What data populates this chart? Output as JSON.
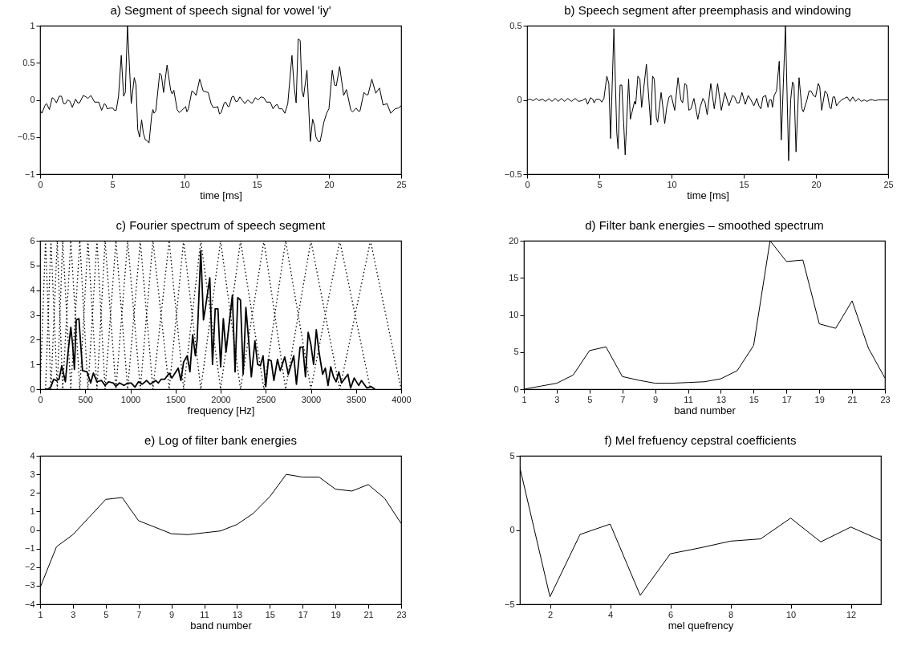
{
  "chart_data": [
    {
      "type": "line",
      "title": "a) Segment of speech signal for vowel 'iy'",
      "xlabel": "time [ms]",
      "xlim": [
        0,
        25
      ],
      "ylim": [
        -1,
        1
      ],
      "xticks": [
        0,
        5,
        10,
        15,
        20,
        25
      ],
      "yticks": [
        -1,
        -0.5,
        0,
        0.5,
        1
      ],
      "x": [
        0,
        0.12,
        0.35,
        0.45,
        0.64,
        0.84,
        0.98,
        1.13,
        1.33,
        1.48,
        1.62,
        1.76,
        1.91,
        2.07,
        2.23,
        2.46,
        2.6,
        2.73,
        2.99,
        3.18,
        3.32,
        3.52,
        3.77,
        3.96,
        4.06,
        4.26,
        4.45,
        4.55,
        4.65,
        4.84,
        5.04,
        5.14,
        5.27,
        5.43,
        5.62,
        5.78,
        5.9,
        6.05,
        6.31,
        6.52,
        6.64,
        6.76,
        6.89,
        7.03,
        7.15,
        7.29,
        7.42,
        7.54,
        7.73,
        7.81,
        7.89,
        8.01,
        8.28,
        8.4,
        8.55,
        8.79,
        9.04,
        9.14,
        9.26,
        9.49,
        9.63,
        9.82,
        10.08,
        10.16,
        10.27,
        10.51,
        10.66,
        10.8,
        11.05,
        11.29,
        11.45,
        11.64,
        11.84,
        11.97,
        12.17,
        12.3,
        12.42,
        12.54,
        12.75,
        12.85,
        13.01,
        13.09,
        13.28,
        13.4,
        13.54,
        13.67,
        13.83,
        14.02,
        14.18,
        14.38,
        14.61,
        14.71,
        14.9,
        15.1,
        15.29,
        15.49,
        15.68,
        15.94,
        16.13,
        16.27,
        16.41,
        16.56,
        16.76,
        16.95,
        17.15,
        17.44,
        17.58,
        17.73,
        17.87,
        18.01,
        18.13,
        18.24,
        18.48,
        18.71,
        18.87,
        19,
        19.1,
        19.26,
        19.39,
        19.65,
        19.84,
        20,
        20.23,
        20.39,
        20.51,
        20.74,
        21.02,
        21.21,
        21.52,
        21.64,
        21.88,
        22.03,
        22.15,
        22.42,
        22.58,
        22.71,
        22.97,
        23.24,
        23.5,
        23.75,
        24.02,
        24.28,
        24.57,
        24.8,
        25
      ],
      "series": [
        {
          "color": "#000000",
          "values": [
            -0.14,
            -0.18,
            -0.07,
            -0.05,
            -0.13,
            0.03,
            0.01,
            -0.04,
            0.05,
            0.05,
            -0.05,
            -0.05,
            0,
            -0.02,
            -0.1,
            0.01,
            -0.04,
            -0.04,
            0.06,
            0.04,
            0.02,
            0.06,
            -0.03,
            -0.03,
            -0.03,
            -0.14,
            -0.05,
            -0.07,
            -0.12,
            -0.11,
            -0.11,
            -0.14,
            -0.14,
            0.05,
            0.6,
            0.05,
            0.1,
            1,
            -0.05,
            0.3,
            0.2,
            -0.4,
            -0.5,
            -0.27,
            -0.45,
            -0.54,
            -0.55,
            -0.58,
            -0.2,
            -0.13,
            -0.18,
            -0.15,
            0.36,
            0.33,
            0.1,
            0.47,
            0.13,
            0.08,
            0.13,
            -0.13,
            -0.17,
            -0.14,
            -0.09,
            -0.16,
            -0.12,
            0.12,
            0.1,
            0.06,
            0.28,
            0.12,
            0.11,
            0.1,
            -0.05,
            -0.1,
            -0.1,
            -0.09,
            -0.19,
            -0.17,
            -0.04,
            -0.03,
            -0.09,
            -0.09,
            0.04,
            0.05,
            -0.02,
            -0.02,
            0.04,
            -0.01,
            -0.05,
            0,
            -0.04,
            -0.04,
            0.03,
            0,
            0.04,
            0.03,
            -0.03,
            -0.03,
            -0.12,
            -0.08,
            -0.06,
            -0.12,
            -0.12,
            -0.18,
            -0.05,
            0.6,
            0.2,
            -0.04,
            0.82,
            0.8,
            0.12,
            0.04,
            0.4,
            -0.56,
            -0.26,
            -0.35,
            -0.5,
            -0.56,
            -0.56,
            -0.3,
            -0.18,
            -0.12,
            0.4,
            0.2,
            0.19,
            0.45,
            0.06,
            0.14,
            -0.14,
            -0.16,
            -0.11,
            -0.15,
            -0.15,
            0.1,
            0.07,
            0.07,
            0.28,
            0.09,
            0.16,
            -0.07,
            -0.05,
            -0.18,
            -0.12,
            -0.11,
            -0.08
          ]
        }
      ]
    },
    {
      "type": "line",
      "title": "b) Speech segment after preemphasis and windowing",
      "xlabel": "time [ms]",
      "xlim": [
        0,
        25
      ],
      "ylim": [
        -0.5,
        0.5
      ],
      "xticks": [
        0,
        5,
        10,
        15,
        20,
        25
      ],
      "yticks": [
        -0.5,
        0,
        0.5
      ],
      "x": [
        0,
        0.2,
        0.43,
        0.63,
        0.82,
        1.06,
        1.27,
        1.51,
        1.72,
        1.96,
        2.15,
        2.39,
        2.58,
        2.82,
        3.07,
        3.33,
        3.56,
        3.8,
        4.05,
        4.19,
        4.39,
        4.54,
        4.64,
        4.78,
        5.03,
        5.17,
        5.32,
        5.52,
        5.66,
        5.78,
        6.01,
        6.21,
        6.3,
        6.44,
        6.56,
        6.79,
        7.03,
        7.15,
        7.44,
        7.52,
        7.67,
        7.81,
        7.93,
        8.26,
        8.56,
        8.69,
        8.81,
        8.95,
        9.04,
        9.28,
        9.38,
        9.53,
        9.67,
        9.83,
        9.98,
        10.22,
        10.45,
        10.65,
        10.77,
        10.92,
        11.04,
        11.2,
        11.35,
        11.55,
        11.82,
        11.98,
        12.18,
        12.33,
        12.47,
        12.72,
        12.96,
        13.19,
        13.45,
        13.7,
        13.98,
        14.23,
        14.37,
        14.53,
        14.68,
        14.88,
        15.11,
        15.31,
        15.5,
        15.7,
        15.9,
        16.05,
        16.19,
        16.33,
        16.52,
        16.68,
        16.78,
        16.91,
        16.99,
        17.11,
        17.27,
        17.46,
        17.6,
        17.89,
        18.11,
        18.25,
        18.38,
        18.48,
        18.62,
        18.83,
        19.03,
        19.13,
        19.38,
        19.52,
        19.66,
        19.82,
        19.97,
        20.16,
        20.26,
        20.4,
        20.63,
        20.79,
        20.95,
        21.05,
        21.18,
        21.3,
        21.42,
        21.57,
        21.77,
        21.97,
        22.16,
        22.36,
        22.55,
        22.75,
        22.95,
        23.14,
        23.34,
        23.53,
        23.73,
        23.92,
        24.12,
        24.31,
        24.51,
        25
      ],
      "series": [
        {
          "color": "#000000",
          "values": [
            0,
            0.005,
            -0.005,
            0.01,
            -0.005,
            0.005,
            -0.01,
            0.008,
            -0.01,
            0.01,
            -0.01,
            0.01,
            -0.01,
            0.01,
            -0.01,
            0.01,
            -0.01,
            -0.005,
            0.01,
            -0.03,
            0.015,
            0.005,
            -0.02,
            0.005,
            0.003,
            -0.015,
            0.01,
            0.16,
            0.11,
            -0.26,
            0.48,
            -0.22,
            -0.33,
            0.1,
            0.1,
            -0.37,
            0.14,
            -0.13,
            -0.01,
            -0.03,
            0.16,
            0.14,
            -0.05,
            0.24,
            -0.17,
            0.16,
            0.14,
            -0.12,
            -0.15,
            0.05,
            -0.03,
            -0.16,
            -0.05,
            0.02,
            0.03,
            -0.07,
            0.15,
            0,
            -0.02,
            0.11,
            0.1,
            -0.07,
            -0.06,
            0.01,
            -0.13,
            -0.05,
            0.01,
            -0.02,
            -0.1,
            0.11,
            -0.06,
            0.11,
            -0.07,
            0.05,
            -0.04,
            0.03,
            0.02,
            -0.02,
            -0.02,
            0.05,
            -0.03,
            0.03,
            0,
            -0.04,
            0.01,
            -0.04,
            -0.06,
            0.02,
            0.03,
            -0.05,
            0,
            0,
            -0.05,
            0.03,
            0.06,
            0.26,
            -0.27,
            0.5,
            -0.41,
            0,
            0.12,
            0.1,
            -0.35,
            0.15,
            -0.06,
            -0.08,
            0,
            0.06,
            0.06,
            0.03,
            0.02,
            0.11,
            0.09,
            -0.07,
            0.06,
            0.04,
            -0.05,
            -0.06,
            0.02,
            0.02,
            -0.04,
            -0.02,
            0,
            0.01,
            0.02,
            -0.01,
            0.02,
            -0.01,
            0.01,
            -0.01,
            0,
            -0.01,
            0,
            0,
            -0.005,
            0,
            0,
            0
          ]
        }
      ]
    },
    {
      "type": "line",
      "title": "c) Fourier spectrum of speech segment",
      "xlabel": "frequency [Hz]",
      "xlim": [
        0,
        4000
      ],
      "ylim": [
        0,
        6
      ],
      "xticks": [
        0,
        500,
        1000,
        1500,
        2000,
        2500,
        3000,
        3500,
        4000
      ],
      "yticks": [
        0,
        1,
        2,
        3,
        4,
        5,
        6
      ],
      "series": [
        {
          "color": "#000000",
          "line_style": "dotted",
          "x": [
            0,
            60,
            120,
            190,
            250,
            340,
            440,
            530,
            630,
            720,
            840,
            970,
            1110,
            1250,
            1430,
            1590,
            1780,
            2000,
            2220,
            2480,
            2720,
            3000,
            3320,
            3660,
            4000
          ],
          "values": [
            0,
            6,
            0,
            6,
            0,
            6,
            0,
            6,
            0,
            6,
            0,
            6,
            0,
            6,
            0,
            6,
            0,
            6,
            0,
            6,
            0,
            6,
            0,
            6,
            0
          ]
        },
        {
          "color": "#000000",
          "line_style": "dotted",
          "x": [
            60,
            120,
            190,
            250,
            340,
            440,
            530,
            630,
            720,
            840,
            970,
            1110,
            1250,
            1430,
            1590,
            1780,
            2000,
            2220,
            2480,
            2720,
            3000,
            3320,
            3660
          ],
          "values": [
            0,
            6,
            0,
            6,
            0,
            6,
            0,
            6,
            0,
            6,
            0,
            6,
            0,
            6,
            0,
            6,
            0,
            6,
            0,
            6,
            0,
            6,
            0
          ]
        },
        {
          "color": "#000000",
          "line_style": "solid",
          "x": [
            60,
            90,
            120,
            150,
            180,
            210,
            240,
            280,
            310,
            340,
            360,
            380,
            400,
            430,
            470,
            520,
            560,
            590,
            630,
            680,
            720,
            760,
            810,
            840,
            880,
            930,
            970,
            1010,
            1050,
            1090,
            1130,
            1180,
            1220,
            1280,
            1310,
            1340,
            1380,
            1430,
            1460,
            1530,
            1560,
            1590,
            1630,
            1660,
            1690,
            1720,
            1740,
            1780,
            1810,
            1840,
            1880,
            1910,
            1940,
            1970,
            2000,
            2030,
            2060,
            2090,
            2130,
            2160,
            2190,
            2220,
            2250,
            2280,
            2310,
            2340,
            2380,
            2410,
            2440,
            2470,
            2500,
            2530,
            2560,
            2590,
            2630,
            2660,
            2710,
            2750,
            2810,
            2840,
            2880,
            2910,
            2940,
            2970,
            3000,
            3030,
            3060,
            3090,
            3130,
            3160,
            3190,
            3220,
            3250,
            3280,
            3310,
            3340,
            3410,
            3440,
            3480,
            3530,
            3560,
            3620,
            3670,
            3710
          ],
          "values": [
            0,
            0,
            0.1,
            0.4,
            0.35,
            0.4,
            0.95,
            0.3,
            1.5,
            2.5,
            1.8,
            0.8,
            2.8,
            2.85,
            0.75,
            0.7,
            0.25,
            0.65,
            0.3,
            0.35,
            0.15,
            0.3,
            0.25,
            0.12,
            0.25,
            0.15,
            0.25,
            0.25,
            0.08,
            0.3,
            0.2,
            0.35,
            0.2,
            0.35,
            0.25,
            0.4,
            0.4,
            0.65,
            0.45,
            0.85,
            0.35,
            1.1,
            1.35,
            0.7,
            2.2,
            1.35,
            2.0,
            5.6,
            2.8,
            3.5,
            4.5,
            1.0,
            3.25,
            3.25,
            0.9,
            2.85,
            1.5,
            2.5,
            3.8,
            0.7,
            3.7,
            3.6,
            0.6,
            3.3,
            2.0,
            0.5,
            1.95,
            1.0,
            0.95,
            1.35,
            0.1,
            1.2,
            1.15,
            0.35,
            1.2,
            0.75,
            1.3,
            0.6,
            1.35,
            0.2,
            1.7,
            1.7,
            0.5,
            2.3,
            1.8,
            1.0,
            2.4,
            1.5,
            0.6,
            0.85,
            0.15,
            0.9,
            0.5,
            0.3,
            0.7,
            0.25,
            0.6,
            0.05,
            0.45,
            0.15,
            0.35,
            0.05,
            0.1,
            0
          ]
        }
      ]
    },
    {
      "type": "line",
      "title": "d) Filter bank energies – smoothed spectrum",
      "xlabel": "band number",
      "xlim": [
        1,
        23
      ],
      "ylim": [
        0,
        20
      ],
      "xticks": [
        1,
        3,
        5,
        7,
        9,
        11,
        13,
        15,
        17,
        19,
        21,
        23
      ],
      "yticks": [
        0,
        5,
        10,
        15,
        20
      ],
      "x": [
        1,
        2,
        3,
        4,
        5,
        6,
        7,
        8,
        9,
        10,
        11,
        12,
        13,
        14,
        15,
        16,
        17,
        18,
        19,
        20,
        21,
        22,
        23
      ],
      "series": [
        {
          "color": "#000000",
          "values": [
            0,
            0.4,
            0.8,
            1.9,
            5.2,
            5.7,
            1.7,
            1.2,
            0.8,
            0.8,
            0.9,
            1,
            1.4,
            2.5,
            5.9,
            20,
            17.2,
            17.4,
            8.8,
            8.2,
            11.9,
            5.5,
            1.5
          ]
        }
      ]
    },
    {
      "type": "line",
      "title": "e) Log of filter bank energies",
      "xlabel": "band number",
      "xlim": [
        1,
        23
      ],
      "ylim": [
        -4,
        4
      ],
      "xticks": [
        1,
        3,
        5,
        7,
        9,
        11,
        13,
        15,
        17,
        19,
        21,
        23
      ],
      "yticks": [
        -4,
        -3,
        -2,
        -1,
        0,
        1,
        2,
        3,
        4
      ],
      "x": [
        1,
        2,
        3,
        4,
        5,
        6,
        7,
        8,
        9,
        10,
        11,
        12,
        13,
        14,
        15,
        16,
        17,
        18,
        19,
        20,
        21,
        22,
        23
      ],
      "series": [
        {
          "color": "#000000",
          "values": [
            -3.1,
            -0.9,
            -0.25,
            0.7,
            1.65,
            1.75,
            0.5,
            0.15,
            -0.2,
            -0.25,
            -0.15,
            -0.05,
            0.3,
            0.9,
            1.8,
            3.0,
            2.85,
            2.85,
            2.2,
            2.1,
            2.45,
            1.7,
            0.35
          ]
        }
      ]
    },
    {
      "type": "line",
      "title": "f) Mel frefuency cepstral coefficients",
      "xlabel": "mel quefrency",
      "xlim": [
        1,
        13
      ],
      "ylim": [
        -5,
        5
      ],
      "xticks": [
        2,
        4,
        6,
        8,
        10,
        12
      ],
      "yticks": [
        -5,
        0,
        5
      ],
      "x": [
        1,
        2,
        3,
        4,
        5,
        6,
        7,
        8,
        9,
        10,
        11,
        12,
        13
      ],
      "series": [
        {
          "color": "#000000",
          "values": [
            4.2,
            -4.5,
            -0.3,
            0.4,
            -4.4,
            -1.6,
            -1.2,
            -0.75,
            -0.6,
            0.8,
            -0.8,
            0.2,
            -0.7
          ]
        }
      ]
    }
  ]
}
